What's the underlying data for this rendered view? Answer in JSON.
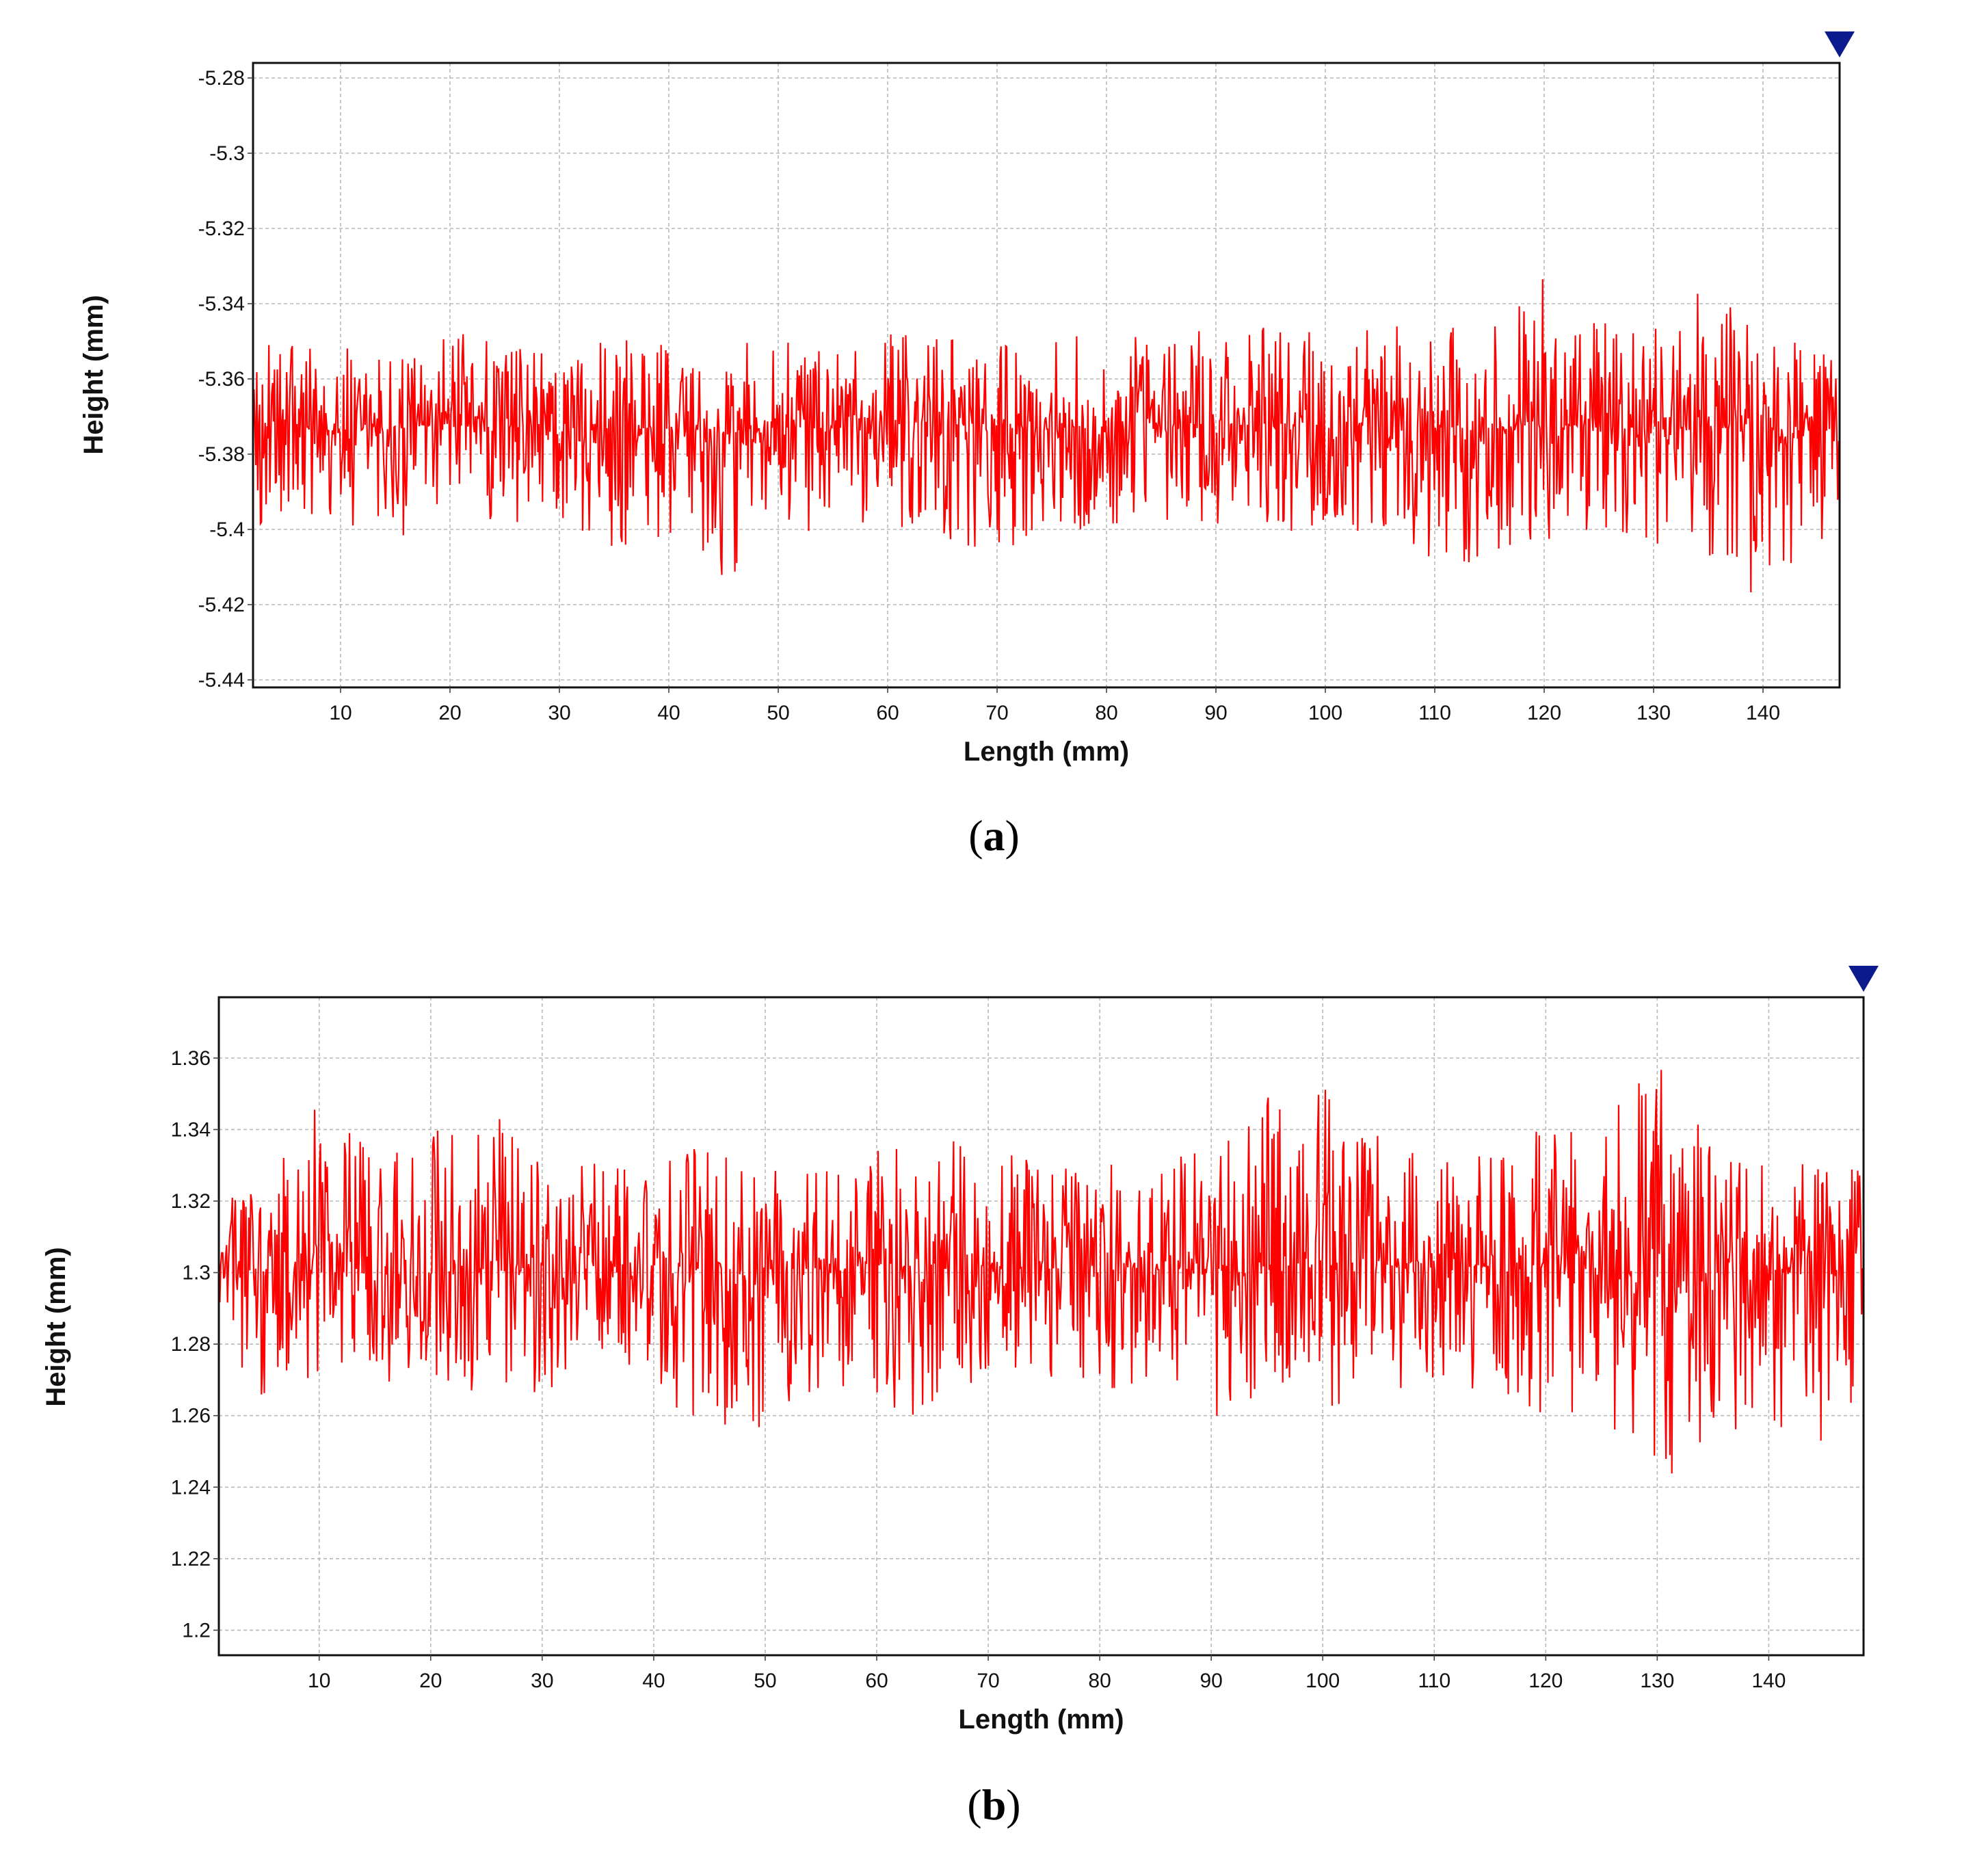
{
  "chart_data": [
    {
      "panel": "a",
      "type": "line",
      "caption_open": "(",
      "caption_letter": "a",
      "caption_close": ")",
      "xlabel": "Length (mm)",
      "ylabel": "Height (mm)",
      "xlim": [
        2,
        147
      ],
      "ylim": [
        -5.442,
        -5.276
      ],
      "xticks": [
        10,
        20,
        30,
        40,
        50,
        60,
        70,
        80,
        90,
        100,
        110,
        120,
        130,
        140
      ],
      "yticks": [
        -5.28,
        -5.3,
        -5.32,
        -5.34,
        -5.36,
        -5.38,
        -5.4,
        -5.42,
        -5.44
      ],
      "ytick_labels": [
        "-5.28",
        "-5.3",
        "-5.32",
        "-5.34",
        "-5.36",
        "-5.38",
        "-5.4",
        "-5.42",
        "-5.44"
      ],
      "grid": true,
      "marker": "triangle-down at top-right",
      "series": [
        {
          "color": "#ff0000",
          "profile": {
            "x": [
              2,
              5,
              10,
              15,
              20,
              25,
              30,
              35,
              40,
              45,
              50,
              55,
              60,
              65,
              70,
              75,
              80,
              85,
              90,
              95,
              100,
              105,
              110,
              115,
              120,
              125,
              130,
              135,
              140,
              145,
              147
            ],
            "baseline": [
              -5.373,
              -5.372,
              -5.374,
              -5.373,
              -5.372,
              -5.373,
              -5.374,
              -5.373,
              -5.373,
              -5.374,
              -5.373,
              -5.373,
              -5.372,
              -5.372,
              -5.373,
              -5.373,
              -5.372,
              -5.373,
              -5.372,
              -5.372,
              -5.373,
              -5.373,
              -5.373,
              -5.373,
              -5.372,
              -5.373,
              -5.373,
              -5.373,
              -5.373,
              -5.374,
              -5.374
            ],
            "max": [
              -5.351,
              -5.348,
              -5.349,
              -5.35,
              -5.347,
              -5.35,
              -5.352,
              -5.349,
              -5.35,
              -5.351,
              -5.349,
              -5.35,
              -5.348,
              -5.349,
              -5.35,
              -5.35,
              -5.346,
              -5.35,
              -5.344,
              -5.346,
              -5.348,
              -5.346,
              -5.34,
              -5.344,
              -5.332,
              -5.342,
              -5.345,
              -5.334,
              -5.346,
              -5.35,
              -5.355
            ],
            "min": [
              -5.401,
              -5.398,
              -5.4,
              -5.402,
              -5.401,
              -5.399,
              -5.397,
              -5.405,
              -5.403,
              -5.415,
              -5.401,
              -5.4,
              -5.399,
              -5.402,
              -5.407,
              -5.403,
              -5.4,
              -5.399,
              -5.4,
              -5.401,
              -5.402,
              -5.402,
              -5.41,
              -5.409,
              -5.403,
              -5.404,
              -5.406,
              -5.408,
              -5.42,
              -5.404,
              -5.4
            ]
          }
        }
      ]
    },
    {
      "panel": "b",
      "type": "line",
      "caption_open": "(",
      "caption_letter": "b",
      "caption_close": ")",
      "xlabel": "Length (mm)",
      "ylabel": "Height (mm)",
      "xlim": [
        1,
        148.5
      ],
      "ylim": [
        1.193,
        1.377
      ],
      "xticks": [
        10,
        20,
        30,
        40,
        50,
        60,
        70,
        80,
        90,
        100,
        110,
        120,
        130,
        140
      ],
      "yticks": [
        1.36,
        1.34,
        1.32,
        1.3,
        1.28,
        1.26,
        1.24,
        1.22,
        1.2
      ],
      "ytick_labels": [
        "1.36",
        "1.34",
        "1.32",
        "1.3",
        "1.28",
        "1.26",
        "1.24",
        "1.22",
        "1.2"
      ],
      "grid": true,
      "marker": "triangle-down at top-right",
      "series": [
        {
          "color": "#ff0000",
          "profile": {
            "x": [
              1,
              5,
              10,
              15,
              20,
              25,
              30,
              35,
              40,
              45,
              50,
              55,
              60,
              65,
              70,
              75,
              80,
              85,
              90,
              95,
              100,
              105,
              110,
              115,
              120,
              125,
              130,
              135,
              140,
              145,
              148.5
            ],
            "baseline": [
              1.3,
              1.299,
              1.3,
              1.3,
              1.3,
              1.301,
              1.3,
              1.302,
              1.302,
              1.301,
              1.301,
              1.301,
              1.302,
              1.301,
              1.302,
              1.301,
              1.302,
              1.301,
              1.301,
              1.302,
              1.303,
              1.302,
              1.302,
              1.302,
              1.301,
              1.301,
              1.3,
              1.3,
              1.299,
              1.299,
              1.298
            ],
            "max": [
              1.318,
              1.331,
              1.35,
              1.333,
              1.34,
              1.348,
              1.33,
              1.334,
              1.336,
              1.334,
              1.328,
              1.333,
              1.334,
              1.337,
              1.342,
              1.332,
              1.33,
              1.331,
              1.337,
              1.35,
              1.354,
              1.338,
              1.332,
              1.336,
              1.341,
              1.347,
              1.359,
              1.342,
              1.335,
              1.331,
              1.33
            ],
            "min": [
              1.28,
              1.263,
              1.272,
              1.27,
              1.267,
              1.267,
              1.265,
              1.276,
              1.263,
              1.256,
              1.25,
              1.265,
              1.264,
              1.258,
              1.265,
              1.265,
              1.266,
              1.271,
              1.259,
              1.263,
              1.258,
              1.27,
              1.264,
              1.268,
              1.258,
              1.26,
              1.24,
              1.254,
              1.258,
              1.252,
              1.255
            ]
          }
        }
      ]
    }
  ]
}
